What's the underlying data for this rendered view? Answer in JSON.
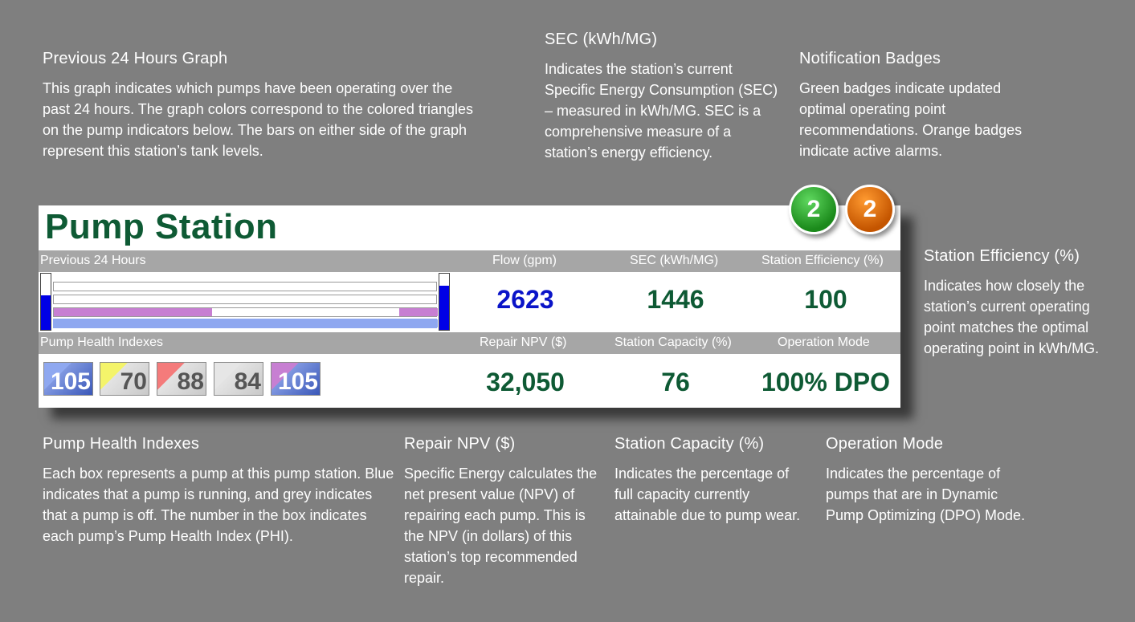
{
  "notes": {
    "graph": {
      "title": "Previous 24 Hours Graph",
      "text": "This graph indicates which pumps have been operating over the past 24 hours. The graph colors correspond to the colored triangles on the pump indicators below. The bars on either side of the graph represent this station’s tank levels."
    },
    "sec": {
      "title": "SEC (kWh/MG)",
      "text": "Indicates the station’s current Specific Energy Consumption (SEC) – measured in kWh/MG. SEC is a comprehensive measure of a station’s energy efficiency."
    },
    "badges": {
      "title": "Notification Badges",
      "text": "Green badges indicate updated optimal operating point recommendations. Orange badges indicate active alarms."
    },
    "efficiency": {
      "title": "Station Efficiency (%)",
      "text": "Indicates how closely the station’s current operating point matches the optimal operating point in kWh/MG."
    },
    "health": {
      "title": "Pump Health Indexes",
      "text": "Each box represents a pump at this pump station. Blue indicates that a pump is running, and grey indicates that a pump is off. The number in the box indicates each pump’s Pump Health Index (PHI)."
    },
    "npv": {
      "title": "Repair NPV ($)",
      "text": "Specific Energy calculates the net present value (NPV) of repairing each pump. This is the NPV (in dollars) of this station’s top recommended repair."
    },
    "capacity": {
      "title": "Station Capacity (%)",
      "text": "Indicates the percentage of full capacity currently attainable due to pump wear."
    },
    "mode": {
      "title": "Operation Mode",
      "text": "Indicates the percentage of pumps that are in Dynamic Pump Optimizing (DPO) Mode."
    }
  },
  "widget": {
    "title": "Pump Station",
    "headers1": {
      "graph": "Previous 24 Hours",
      "flow": "Flow (gpm)",
      "sec": "SEC (kWh/MG)",
      "efficiency": "Station Efficiency (%)"
    },
    "headers2": {
      "health": "Pump Health Indexes",
      "npv": "Repair NPV ($)",
      "capacity": "Station Capacity (%)",
      "mode": "Operation Mode"
    },
    "values": {
      "flow": "2623",
      "sec": "1446",
      "efficiency": "100",
      "npv": "32,050",
      "capacity": "76",
      "mode": "100% DPO"
    },
    "colors": {
      "title": "#0e5a34",
      "flow": "#0a14c8",
      "value": "#0e5a34",
      "running": "#3a57b8",
      "off": "#c9c9c9"
    },
    "tank_levels": {
      "left": 0.62,
      "right": 0.78
    },
    "pumps": [
      {
        "phi": "105",
        "state": "running",
        "marker": "#8fa8f0"
      },
      {
        "phi": "70",
        "state": "off",
        "marker": "#f4f46a"
      },
      {
        "phi": "88",
        "state": "off",
        "marker": "#f47b7b"
      },
      {
        "phi": "84",
        "state": "off",
        "marker": "#e6e6e6"
      },
      {
        "phi": "105",
        "state": "running",
        "marker": "#c77fd2"
      }
    ],
    "badges": {
      "green": "2",
      "orange": "2"
    }
  }
}
